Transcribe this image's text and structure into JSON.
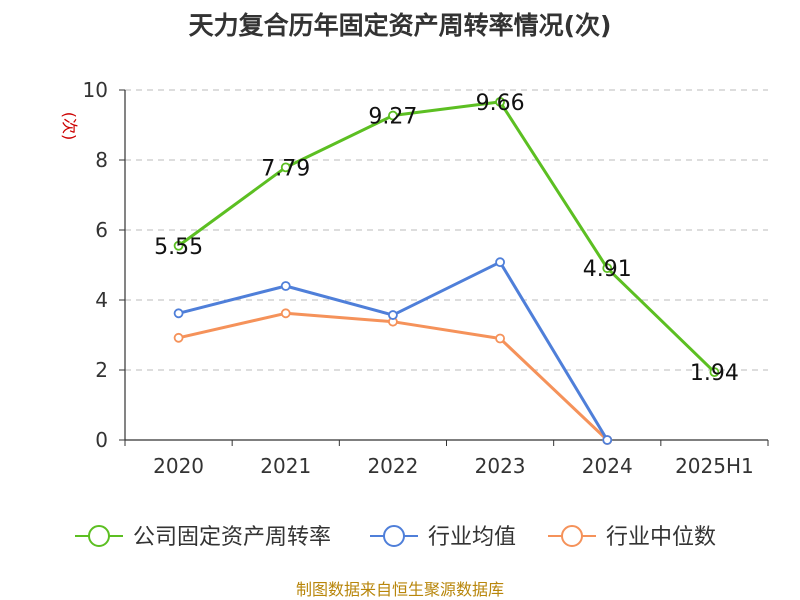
{
  "chart_data": {
    "type": "line",
    "title": "天力复合历年固定资产周转率情况(次)",
    "ylabel": "(次)",
    "xlabel": "",
    "categories": [
      "2020",
      "2021",
      "2022",
      "2023",
      "2024",
      "2025H1"
    ],
    "ylim": [
      0,
      10
    ],
    "yticks": [
      0,
      2,
      4,
      6,
      8,
      10
    ],
    "grid": true,
    "legend_position": "bottom",
    "series": [
      {
        "name": "公司固定资产周转率",
        "color": "#5cbf22",
        "values": [
          5.55,
          7.79,
          9.27,
          9.66,
          4.91,
          1.94
        ],
        "labels": [
          "5.55",
          "7.79",
          "9.27",
          "9.66",
          "4.91",
          "1.94"
        ],
        "show_labels": true
      },
      {
        "name": "行业均值",
        "color": "#4f7fd9",
        "values": [
          3.62,
          4.4,
          3.57,
          5.08,
          0,
          null
        ],
        "show_labels": false
      },
      {
        "name": "行业中位数",
        "color": "#f5925a",
        "values": [
          2.92,
          3.62,
          3.38,
          2.9,
          0,
          null
        ],
        "show_labels": false
      }
    ]
  },
  "source_note": "制图数据来自恒生聚源数据库"
}
